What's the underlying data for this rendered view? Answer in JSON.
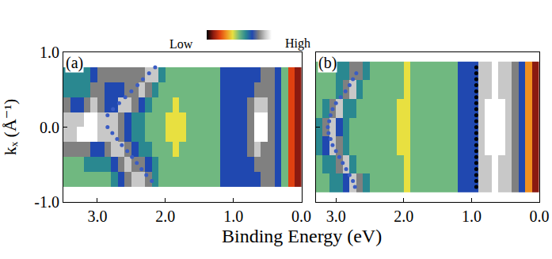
{
  "chart_data": {
    "type": "heatmap",
    "xlabel": "Binding Energy (eV)",
    "ylabel": "kₓ (Å⁻¹)",
    "grid": false,
    "colorbar": {
      "range": [
        0,
        10
      ],
      "ticks": [
        {
          "value": 0,
          "label": "Low"
        },
        {
          "value": 10,
          "label": "High"
        }
      ]
    },
    "panels": [
      {
        "label": "(a)",
        "xlim": [
          3.5,
          0.0
        ],
        "xticks": [
          {
            "value": 3,
            "label": "3.0"
          },
          {
            "value": 2,
            "label": "2.0"
          },
          {
            "value": 1,
            "label": "1.0"
          },
          {
            "value": 0,
            "label": "0.0"
          }
        ],
        "ylim": [
          -1.0,
          1.0
        ],
        "yticks": [
          {
            "value": 1,
            "label": "1.0"
          },
          {
            "value": 0,
            "label": "0.0"
          },
          {
            "value": -1,
            "label": "-1.0"
          }
        ],
        "tick_labels": true,
        "x": [
          3.45,
          3.35,
          3.25,
          3.15,
          3.05,
          2.95,
          2.85,
          2.75,
          2.65,
          2.55,
          2.45,
          2.35,
          2.25,
          2.15,
          2.05,
          1.95,
          1.85,
          1.75,
          1.65,
          1.55,
          1.45,
          1.35,
          1.25,
          1.15,
          1.05,
          0.95,
          0.85,
          0.75,
          0.65,
          0.55,
          0.45,
          0.35,
          0.25,
          0.15,
          0.05
        ],
        "y": [
          -0.7,
          -0.5,
          -0.3,
          -0.1,
          0.1,
          0.3,
          0.5,
          0.7
        ],
        "z": [
          [
            5,
            5,
            5,
            5,
            5,
            5,
            5,
            6,
            7,
            8,
            9,
            9,
            8,
            6,
            5,
            5,
            5,
            5,
            5,
            5,
            5,
            5,
            5,
            7,
            7,
            7,
            7,
            7,
            7,
            8,
            8,
            7,
            5,
            2,
            1
          ],
          [
            5,
            5,
            5,
            6,
            6,
            6,
            6,
            7,
            8,
            9,
            8,
            8,
            7,
            6,
            5,
            5,
            5,
            5,
            5,
            5,
            5,
            5,
            5,
            7,
            7,
            7,
            7,
            7,
            8,
            8,
            8,
            7,
            5,
            2,
            1
          ],
          [
            8,
            8,
            8,
            8,
            7,
            7,
            8,
            9,
            9,
            8,
            7,
            6,
            6,
            5,
            5,
            5,
            4,
            5,
            5,
            5,
            5,
            5,
            5,
            7,
            7,
            7,
            7,
            8,
            9,
            8,
            8,
            7,
            5,
            2,
            1
          ],
          [
            9,
            9,
            10,
            10,
            10,
            9,
            9,
            9,
            8,
            7,
            6,
            6,
            5,
            5,
            5,
            4,
            4,
            4,
            5,
            5,
            5,
            5,
            5,
            7,
            7,
            7,
            7,
            8,
            10,
            10,
            8,
            7,
            5,
            2,
            1
          ],
          [
            9,
            9,
            9,
            10,
            10,
            9,
            9,
            9,
            8,
            7,
            6,
            6,
            5,
            5,
            5,
            4,
            4,
            4,
            5,
            5,
            5,
            5,
            5,
            7,
            7,
            7,
            7,
            8,
            10,
            10,
            8,
            7,
            5,
            2,
            1
          ],
          [
            8,
            7,
            7,
            8,
            9,
            8,
            7,
            7,
            9,
            9,
            8,
            7,
            6,
            5,
            5,
            5,
            4,
            5,
            5,
            5,
            5,
            5,
            5,
            7,
            7,
            7,
            7,
            8,
            9,
            9,
            8,
            7,
            5,
            2,
            1
          ],
          [
            6,
            6,
            6,
            6,
            8,
            8,
            7,
            7,
            7,
            8,
            8,
            9,
            8,
            6,
            5,
            5,
            5,
            5,
            5,
            5,
            5,
            5,
            5,
            7,
            7,
            7,
            7,
            7,
            8,
            8,
            8,
            7,
            5,
            2,
            1
          ],
          [
            6,
            6,
            6,
            6,
            7,
            8,
            8,
            8,
            8,
            8,
            8,
            8,
            9,
            9,
            6,
            5,
            5,
            5,
            5,
            5,
            5,
            5,
            5,
            7,
            7,
            7,
            7,
            7,
            7,
            8,
            8,
            7,
            5,
            2,
            1
          ]
        ],
        "series": [
          {
            "type": "scatter",
            "marker": "dot",
            "color": "#3a5cc4",
            "x": [
              2.15,
              2.24,
              2.33,
              2.41,
              2.5,
              2.59,
              2.68,
              2.77,
              2.85,
              2.85,
              2.78,
              2.71,
              2.64,
              2.56,
              2.49,
              2.42,
              2.35,
              2.28,
              2.2
            ],
            "y": [
              0.8,
              0.72,
              0.64,
              0.56,
              0.48,
              0.4,
              0.32,
              0.24,
              0.16,
              0.0,
              -0.08,
              -0.16,
              -0.24,
              -0.32,
              -0.4,
              -0.48,
              -0.56,
              -0.64,
              -0.72
            ]
          }
        ]
      },
      {
        "label": "(b)",
        "xlim": [
          3.3,
          0.0
        ],
        "xticks": [
          {
            "value": 3,
            "label": "3.0"
          },
          {
            "value": 2,
            "label": "2.0"
          },
          {
            "value": 1,
            "label": "1.0"
          },
          {
            "value": 0,
            "label": "0.0"
          }
        ],
        "ylim": [
          -1.0,
          1.0
        ],
        "yticks": [
          {
            "value": 1,
            "label": "1.0"
          },
          {
            "value": 0,
            "label": "0.0"
          },
          {
            "value": -1,
            "label": "-1.0"
          }
        ],
        "tick_labels": "x",
        "x": [
          3.25,
          3.15,
          3.05,
          2.95,
          2.85,
          2.75,
          2.65,
          2.55,
          2.45,
          2.35,
          2.25,
          2.15,
          2.05,
          1.95,
          1.85,
          1.75,
          1.65,
          1.55,
          1.45,
          1.35,
          1.25,
          1.15,
          1.05,
          0.95,
          0.85,
          0.75,
          0.65,
          0.55,
          0.45,
          0.35,
          0.25,
          0.15,
          0.05
        ],
        "y": [
          -0.75,
          -0.5,
          -0.25,
          0.0,
          0.25,
          0.5,
          0.75
        ],
        "z": [
          [
            5,
            5,
            6,
            6,
            7,
            9,
            8,
            6,
            5,
            5,
            5,
            5,
            5,
            4,
            5,
            5,
            5,
            5,
            5,
            5,
            5,
            7,
            7,
            7,
            9,
            9,
            10,
            9,
            9,
            8,
            7,
            3,
            1
          ],
          [
            5,
            6,
            6,
            8,
            9,
            6,
            5,
            5,
            5,
            5,
            5,
            5,
            5,
            4,
            5,
            5,
            5,
            5,
            5,
            5,
            5,
            7,
            7,
            7,
            9,
            9,
            10,
            9,
            9,
            8,
            7,
            3,
            1
          ],
          [
            6,
            7,
            9,
            8,
            6,
            5,
            5,
            5,
            5,
            5,
            5,
            5,
            4,
            4,
            5,
            5,
            5,
            5,
            5,
            5,
            5,
            7,
            7,
            7,
            9,
            10,
            10,
            10,
            9,
            8,
            7,
            3,
            1
          ],
          [
            6,
            8,
            9,
            7,
            6,
            5,
            5,
            5,
            5,
            5,
            5,
            5,
            4,
            4,
            5,
            5,
            5,
            5,
            5,
            5,
            5,
            7,
            7,
            7,
            9,
            10,
            10,
            10,
            9,
            8,
            7,
            3,
            1
          ],
          [
            5,
            6,
            8,
            9,
            6,
            6,
            5,
            5,
            5,
            5,
            5,
            5,
            4,
            4,
            5,
            5,
            5,
            5,
            5,
            5,
            5,
            7,
            7,
            7,
            9,
            10,
            10,
            10,
            9,
            8,
            7,
            3,
            1
          ],
          [
            5,
            5,
            5,
            6,
            8,
            9,
            6,
            5,
            5,
            5,
            5,
            5,
            5,
            4,
            5,
            5,
            5,
            5,
            5,
            5,
            5,
            7,
            7,
            7,
            9,
            9,
            10,
            9,
            9,
            8,
            7,
            3,
            1
          ],
          [
            5,
            5,
            5,
            6,
            6,
            8,
            8,
            6,
            5,
            5,
            5,
            5,
            5,
            4,
            5,
            5,
            5,
            5,
            5,
            5,
            5,
            7,
            7,
            7,
            9,
            9,
            10,
            9,
            9,
            8,
            7,
            3,
            1
          ]
        ],
        "series": [
          {
            "type": "scatter",
            "marker": "dot",
            "color": "#3a5cc4",
            "x": [
              2.7,
              2.75,
              2.8,
              2.86,
              2.93,
              3.0,
              3.05,
              3.08,
              3.1,
              3.12,
              3.11,
              3.08,
              3.05,
              3.0,
              2.95,
              2.9,
              2.85,
              2.8,
              2.75,
              2.72
            ],
            "y": [
              0.72,
              0.64,
              0.56,
              0.48,
              0.4,
              0.32,
              0.24,
              0.16,
              0.08,
              0.0,
              -0.08,
              -0.16,
              -0.24,
              -0.32,
              -0.4,
              -0.48,
              -0.56,
              -0.64,
              -0.72,
              -0.8
            ]
          },
          {
            "type": "scatter",
            "marker": "dot",
            "color": "#000000",
            "x": [
              0.93,
              0.93,
              0.93,
              0.93,
              0.93,
              0.93,
              0.93,
              0.93,
              0.93,
              0.93,
              0.93,
              0.93,
              0.93,
              0.93,
              0.93,
              0.93,
              0.93,
              0.93,
              0.93,
              0.93,
              0.93
            ],
            "y": [
              0.8,
              0.72,
              0.64,
              0.56,
              0.48,
              0.4,
              0.32,
              0.24,
              0.16,
              0.08,
              0.0,
              -0.08,
              -0.16,
              -0.24,
              -0.32,
              -0.4,
              -0.48,
              -0.56,
              -0.64,
              -0.72,
              -0.8
            ]
          }
        ]
      }
    ]
  }
}
